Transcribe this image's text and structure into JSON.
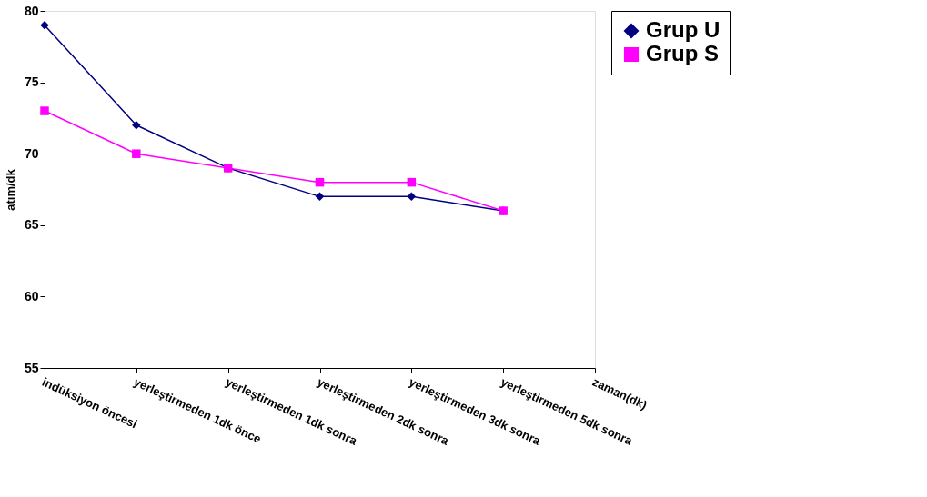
{
  "chart_data": {
    "type": "line",
    "ylabel": "atım/dk",
    "categories": [
      "indüksiyon öncesi",
      "yerleştirmeden 1dk önce",
      "yerleştirmeden 1dk sonra",
      "yerleştirmeden 2dk sonra",
      "yerleştirmeden 3dk sonra",
      "yerleştirmeden 5dk sonra",
      "zaman(dk)"
    ],
    "series": [
      {
        "name": "Grup U",
        "color": "#000080",
        "marker": "diamond",
        "values": [
          79,
          72,
          69,
          67,
          67,
          66,
          null
        ]
      },
      {
        "name": "Grup S",
        "color": "#ff00ff",
        "marker": "square",
        "values": [
          73,
          70,
          69,
          68,
          68,
          66,
          null
        ]
      }
    ],
    "ylim": [
      55,
      80
    ],
    "yticks": [
      55,
      60,
      65,
      70,
      75,
      80
    ],
    "grid": false,
    "legend": "right"
  }
}
